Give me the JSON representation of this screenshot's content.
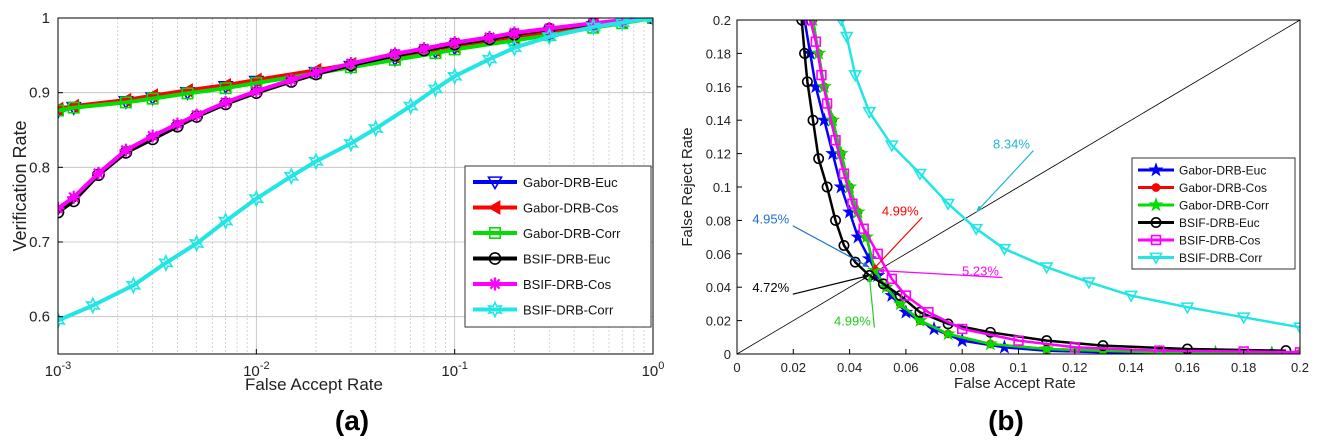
{
  "figure": {
    "panel_labels": [
      "(a)",
      "(b)"
    ]
  },
  "chart_data": [
    {
      "type": "line",
      "panel_label": "(a)",
      "xlabel": "False Accept Rate",
      "ylabel": "Verification Rate",
      "xscale": "log",
      "xlim": [
        0.001,
        1
      ],
      "ylim": [
        0.55,
        1.0
      ],
      "x_ticks": [
        0.001,
        0.01,
        0.1,
        1
      ],
      "x_tick_labels": [
        {
          "base": "10",
          "exp": "-3"
        },
        {
          "base": "10",
          "exp": "-2"
        },
        {
          "base": "10",
          "exp": "-1"
        },
        {
          "base": "10",
          "exp": "0"
        }
      ],
      "y_ticks": [
        0.6,
        0.7,
        0.8,
        0.9,
        1
      ],
      "y_tick_labels": [
        "0.6",
        "0.7",
        "0.8",
        "0.9",
        "1"
      ],
      "grid": true,
      "legend_position": "bottom-right",
      "series": [
        {
          "name": "Gabor-DRB-Euc",
          "color": "#0000ff",
          "marker": "triangle-down",
          "x": [
            0.001,
            0.0012,
            0.0022,
            0.003,
            0.0045,
            0.007,
            0.01,
            0.02,
            0.03,
            0.05,
            0.08,
            0.1,
            0.2,
            0.3,
            0.5,
            0.7,
            1.0
          ],
          "y": [
            0.875,
            0.88,
            0.888,
            0.893,
            0.9,
            0.908,
            0.915,
            0.927,
            0.935,
            0.945,
            0.955,
            0.96,
            0.972,
            0.978,
            0.988,
            0.994,
            1.0
          ]
        },
        {
          "name": "Gabor-DRB-Cos",
          "color": "#ff0000",
          "marker": "triangle-left",
          "x": [
            0.001,
            0.0012,
            0.0022,
            0.003,
            0.0045,
            0.007,
            0.01,
            0.02,
            0.03,
            0.05,
            0.08,
            0.1,
            0.2,
            0.3,
            0.5,
            0.7,
            1.0
          ],
          "y": [
            0.878,
            0.882,
            0.89,
            0.896,
            0.903,
            0.91,
            0.917,
            0.93,
            0.938,
            0.948,
            0.957,
            0.962,
            0.974,
            0.98,
            0.99,
            0.995,
            1.0
          ]
        },
        {
          "name": "Gabor-DRB-Corr",
          "color": "#00dd00",
          "marker": "square",
          "x": [
            0.001,
            0.0012,
            0.0022,
            0.003,
            0.0045,
            0.007,
            0.01,
            0.02,
            0.03,
            0.05,
            0.08,
            0.1,
            0.2,
            0.3,
            0.5,
            0.7,
            1.0
          ],
          "y": [
            0.876,
            0.88,
            0.887,
            0.892,
            0.899,
            0.906,
            0.913,
            0.926,
            0.934,
            0.944,
            0.953,
            0.958,
            0.97,
            0.977,
            0.987,
            0.993,
            1.0
          ]
        },
        {
          "name": "BSIF-DRB-Euc",
          "color": "#000000",
          "marker": "circle",
          "x": [
            0.001,
            0.0012,
            0.0016,
            0.0022,
            0.003,
            0.004,
            0.005,
            0.007,
            0.01,
            0.015,
            0.02,
            0.03,
            0.05,
            0.07,
            0.1,
            0.15,
            0.2,
            0.3,
            0.5,
            0.7,
            1.0
          ],
          "y": [
            0.74,
            0.755,
            0.79,
            0.82,
            0.838,
            0.855,
            0.868,
            0.885,
            0.9,
            0.915,
            0.925,
            0.937,
            0.95,
            0.957,
            0.965,
            0.972,
            0.978,
            0.985,
            0.992,
            0.996,
            1.0
          ]
        },
        {
          "name": "BSIF-DRB-Cos",
          "color": "#ff00ff",
          "marker": "asterisk",
          "x": [
            0.001,
            0.0012,
            0.0016,
            0.0022,
            0.003,
            0.004,
            0.005,
            0.007,
            0.01,
            0.015,
            0.02,
            0.03,
            0.05,
            0.07,
            0.1,
            0.15,
            0.2,
            0.3,
            0.5,
            0.7,
            1.0
          ],
          "y": [
            0.745,
            0.76,
            0.792,
            0.823,
            0.842,
            0.858,
            0.87,
            0.887,
            0.902,
            0.917,
            0.927,
            0.939,
            0.952,
            0.959,
            0.967,
            0.974,
            0.98,
            0.986,
            0.993,
            0.997,
            1.0
          ]
        },
        {
          "name": "BSIF-DRB-Corr",
          "color": "#22e5e5",
          "marker": "hexagram",
          "x": [
            0.001,
            0.0015,
            0.0024,
            0.0035,
            0.005,
            0.007,
            0.01,
            0.015,
            0.02,
            0.03,
            0.04,
            0.06,
            0.08,
            0.1,
            0.15,
            0.2,
            0.3,
            0.5,
            0.7,
            1.0
          ],
          "y": [
            0.595,
            0.615,
            0.642,
            0.672,
            0.698,
            0.728,
            0.758,
            0.788,
            0.808,
            0.832,
            0.852,
            0.882,
            0.905,
            0.922,
            0.945,
            0.96,
            0.975,
            0.988,
            0.994,
            1.0
          ]
        }
      ]
    },
    {
      "type": "line",
      "panel_label": "(b)",
      "xlabel": "False Accept Rate",
      "ylabel": "False Reject Rate",
      "xlim": [
        0,
        0.2
      ],
      "ylim": [
        0,
        0.2
      ],
      "x_ticks": [
        0,
        0.02,
        0.04,
        0.06,
        0.08,
        0.1,
        0.12,
        0.14,
        0.16,
        0.18,
        0.2
      ],
      "x_tick_labels": [
        "0",
        "0.02",
        "0.04",
        "0.06",
        "0.08",
        "0.1",
        "0.12",
        "0.14",
        "0.16",
        "0.18",
        "0.2"
      ],
      "y_ticks": [
        0,
        0.02,
        0.04,
        0.06,
        0.08,
        0.1,
        0.12,
        0.14,
        0.16,
        0.18,
        0.2
      ],
      "y_tick_labels": [
        "0",
        "0.02",
        "0.04",
        "0.06",
        "0.08",
        "0.1",
        "0.12",
        "0.14",
        "0.16",
        "0.18",
        "0.2"
      ],
      "grid": false,
      "legend_position": "right",
      "diagonal_line": true,
      "series": [
        {
          "name": "Gabor-DRB-Euc",
          "color": "#0000ff",
          "marker": "pentagram",
          "x": [
            0.024,
            0.026,
            0.028,
            0.031,
            0.034,
            0.037,
            0.04,
            0.043,
            0.047,
            0.05,
            0.055,
            0.06,
            0.07,
            0.08,
            0.095,
            0.11,
            0.13,
            0.15,
            0.17,
            0.19,
            0.2
          ],
          "y": [
            0.2,
            0.18,
            0.16,
            0.14,
            0.12,
            0.1,
            0.085,
            0.07,
            0.057,
            0.047,
            0.035,
            0.025,
            0.015,
            0.008,
            0.004,
            0.002,
            0.001,
            0.0008,
            0.0005,
            0.0003,
            0.0002
          ]
        },
        {
          "name": "Gabor-DRB-Cos",
          "color": "#ff0000",
          "marker": "circle-filled",
          "x": [
            0.027,
            0.029,
            0.031,
            0.034,
            0.037,
            0.04,
            0.043,
            0.046,
            0.049,
            0.053,
            0.058,
            0.065,
            0.075,
            0.09,
            0.11,
            0.13,
            0.15,
            0.17,
            0.19,
            0.2
          ],
          "y": [
            0.2,
            0.18,
            0.16,
            0.14,
            0.12,
            0.1,
            0.085,
            0.07,
            0.05,
            0.04,
            0.03,
            0.02,
            0.012,
            0.006,
            0.003,
            0.002,
            0.001,
            0.0008,
            0.0005,
            0.0004
          ]
        },
        {
          "name": "Gabor-DRB-Corr",
          "color": "#00dd00",
          "marker": "pentagram",
          "x": [
            0.027,
            0.029,
            0.031,
            0.034,
            0.037,
            0.04,
            0.043,
            0.046,
            0.049,
            0.053,
            0.058,
            0.065,
            0.075,
            0.09,
            0.11,
            0.13,
            0.15,
            0.17,
            0.19,
            0.2
          ],
          "y": [
            0.2,
            0.18,
            0.16,
            0.14,
            0.12,
            0.1,
            0.085,
            0.07,
            0.05,
            0.04,
            0.03,
            0.02,
            0.012,
            0.006,
            0.003,
            0.002,
            0.001,
            0.0008,
            0.0005,
            0.0004
          ]
        },
        {
          "name": "BSIF-DRB-Euc",
          "color": "#000000",
          "marker": "circle",
          "x": [
            0.023,
            0.024,
            0.025,
            0.027,
            0.029,
            0.032,
            0.035,
            0.038,
            0.042,
            0.047,
            0.052,
            0.058,
            0.065,
            0.075,
            0.09,
            0.11,
            0.13,
            0.16,
            0.195
          ],
          "y": [
            0.2,
            0.18,
            0.163,
            0.14,
            0.117,
            0.1,
            0.08,
            0.065,
            0.055,
            0.047,
            0.042,
            0.035,
            0.025,
            0.018,
            0.013,
            0.008,
            0.005,
            0.003,
            0.002
          ]
        },
        {
          "name": "BSIF-DRB-Cos",
          "color": "#ff00ff",
          "marker": "square",
          "x": [
            0.026,
            0.028,
            0.03,
            0.032,
            0.035,
            0.038,
            0.041,
            0.045,
            0.05,
            0.055,
            0.06,
            0.068,
            0.08,
            0.1,
            0.12,
            0.15,
            0.18,
            0.2
          ],
          "y": [
            0.2,
            0.187,
            0.167,
            0.15,
            0.128,
            0.108,
            0.09,
            0.075,
            0.06,
            0.045,
            0.035,
            0.025,
            0.015,
            0.008,
            0.004,
            0.002,
            0.0015,
            0.001
          ]
        },
        {
          "name": "BSIF-DRB-Corr",
          "color": "#22e5e5",
          "marker": "triangle-down",
          "x": [
            0.037,
            0.039,
            0.042,
            0.047,
            0.055,
            0.065,
            0.075,
            0.085,
            0.095,
            0.11,
            0.125,
            0.14,
            0.16,
            0.18,
            0.2
          ],
          "y": [
            0.2,
            0.19,
            0.167,
            0.145,
            0.125,
            0.108,
            0.09,
            0.075,
            0.063,
            0.052,
            0.043,
            0.035,
            0.028,
            0.022,
            0.016
          ]
        }
      ],
      "annotations": [
        {
          "text": "8.34%",
          "color": "#22b8cc",
          "x": 0.085,
          "y": 0.085,
          "label_x": 0.0975,
          "label_y": 0.123
        },
        {
          "text": "4.95%",
          "color": "#1a6fd0",
          "x": 0.047,
          "y": 0.052,
          "label_x": 0.012,
          "label_y": 0.078
        },
        {
          "text": "4.99%",
          "color": "#ff0000",
          "x": 0.048,
          "y": 0.05,
          "label_x": 0.058,
          "label_y": 0.083
        },
        {
          "text": "5.23%",
          "color": "#ff00ff",
          "x": 0.05,
          "y": 0.05,
          "label_x": 0.0865,
          "label_y": 0.047
        },
        {
          "text": "4.72%",
          "color": "#000000",
          "x": 0.047,
          "y": 0.047,
          "label_x": 0.012,
          "label_y": 0.037
        },
        {
          "text": "4.99%",
          "color": "#22cc22",
          "x": 0.047,
          "y": 0.047,
          "label_x": 0.041,
          "label_y": 0.017
        }
      ]
    }
  ]
}
